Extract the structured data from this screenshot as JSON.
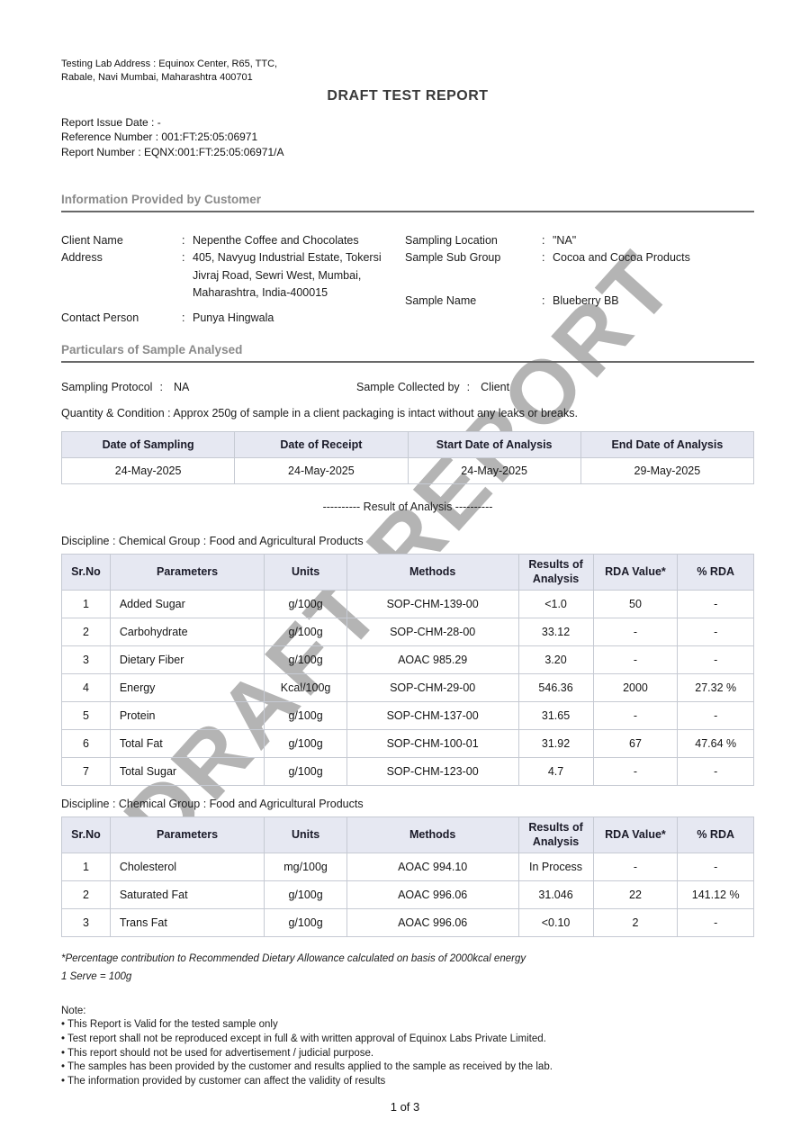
{
  "page": {
    "lab_address": [
      "Testing Lab Address : Equinox Center, R65, TTC,",
      "Rabale, Navi Mumbai, Maharashtra 400701"
    ],
    "title": "DRAFT TEST REPORT",
    "meta": [
      "Report Issue Date : -",
      "Reference Number : 001:FT:25:05:06971",
      "Report Number : EQNX:001:FT:25:05:06971/A"
    ],
    "watermark": "DRAFT REPORT",
    "page_number": "1 of 3"
  },
  "customer": {
    "section_title": "Information Provided by Customer",
    "left": [
      {
        "label": "Client Name",
        "colon": ":",
        "value": "Nepenthe Coffee and Chocolates"
      },
      {
        "label": "Address",
        "colon": ":",
        "value": "405, Navyug Industrial Estate, Tokersi Jivraj Road, Sewri West, Mumbai, Maharashtra, India-400015"
      },
      {
        "label": "Contact Person",
        "colon": ":",
        "value": "Punya Hingwala"
      }
    ],
    "right": [
      {
        "label": "Sampling Location",
        "colon": ":",
        "value": "\"NA\""
      },
      {
        "label": "Sample Sub Group",
        "colon": ":",
        "value": "Cocoa and Cocoa Products"
      },
      {
        "label": "Sample Name",
        "colon": ":",
        "value": "Blueberry BB"
      }
    ]
  },
  "particulars": {
    "section_title": "Particulars of Sample Analysed",
    "sampling_protocol": {
      "label": "Sampling Protocol",
      "colon": ":",
      "value": "NA"
    },
    "sample_collected_by": {
      "label": "Sample Collected by",
      "colon": ":",
      "value": "Client"
    },
    "quantity_condition": "Quantity & Condition : Approx 250g of sample in a client packaging is intact without any leaks or breaks."
  },
  "dates_table": {
    "headers": [
      "Date of Sampling",
      "Date of Receipt",
      "Start Date of Analysis",
      "End Date of Analysis"
    ],
    "values": [
      "24-May-2025",
      "24-May-2025",
      "24-May-2025",
      "29-May-2025"
    ]
  },
  "result_divider": "----------  Result of Analysis  ----------",
  "tables": [
    {
      "discipline": "Discipline : Chemical Group : Food and Agricultural Products",
      "headers": [
        "Sr.No",
        "Parameters",
        "Units",
        "Methods",
        "Results of Analysis",
        "RDA Value*",
        "% RDA"
      ],
      "rows": [
        [
          "1",
          "Added Sugar",
          "g/100g",
          "SOP-CHM-139-00",
          "<1.0",
          "50",
          "-"
        ],
        [
          "2",
          "Carbohydrate",
          "g/100g",
          "SOP-CHM-28-00",
          "33.12",
          "-",
          "-"
        ],
        [
          "3",
          "Dietary Fiber",
          "g/100g",
          "AOAC 985.29",
          "3.20",
          "-",
          "-"
        ],
        [
          "4",
          "Energy",
          "Kcal/100g",
          "SOP-CHM-29-00",
          "546.36",
          "2000",
          "27.32 %"
        ],
        [
          "5",
          "Protein",
          "g/100g",
          "SOP-CHM-137-00",
          "31.65",
          "-",
          "-"
        ],
        [
          "6",
          "Total Fat",
          "g/100g",
          "SOP-CHM-100-01",
          "31.92",
          "67",
          "47.64 %"
        ],
        [
          "7",
          "Total Sugar",
          "g/100g",
          "SOP-CHM-123-00",
          "4.7",
          "-",
          "-"
        ]
      ]
    },
    {
      "discipline": "Discipline : Chemical Group : Food and Agricultural Products",
      "headers": [
        "Sr.No",
        "Parameters",
        "Units",
        "Methods",
        "Results of Analysis",
        "RDA Value*",
        "% RDA"
      ],
      "rows": [
        [
          "1",
          "Cholesterol",
          "mg/100g",
          "AOAC 994.10",
          "In Process",
          "-",
          "-"
        ],
        [
          "2",
          "Saturated Fat",
          "g/100g",
          "AOAC 996.06",
          "31.046",
          "22",
          "141.12 %"
        ],
        [
          "3",
          "Trans Fat",
          "g/100g",
          "AOAC 996.06",
          "<0.10",
          "2",
          "-"
        ]
      ]
    }
  ],
  "footnotes": {
    "rda_note": "*Percentage contribution to Recommended Dietary Allowance calculated on basis of 2000kcal energy",
    "serve_note": "1 Serve = 100g",
    "note_title": "Note:",
    "notes": [
      "• This Report is Valid for the tested sample only",
      "• Test report shall not be reproduced except in full & with written approval of Equinox Labs Private Limited.",
      "• This report should not be used for advertisement / judicial purpose.",
      "• The samples has been provided by the customer and results applied to the sample as received by the lab.",
      "• The information provided by customer can affect the validity of results"
    ]
  }
}
